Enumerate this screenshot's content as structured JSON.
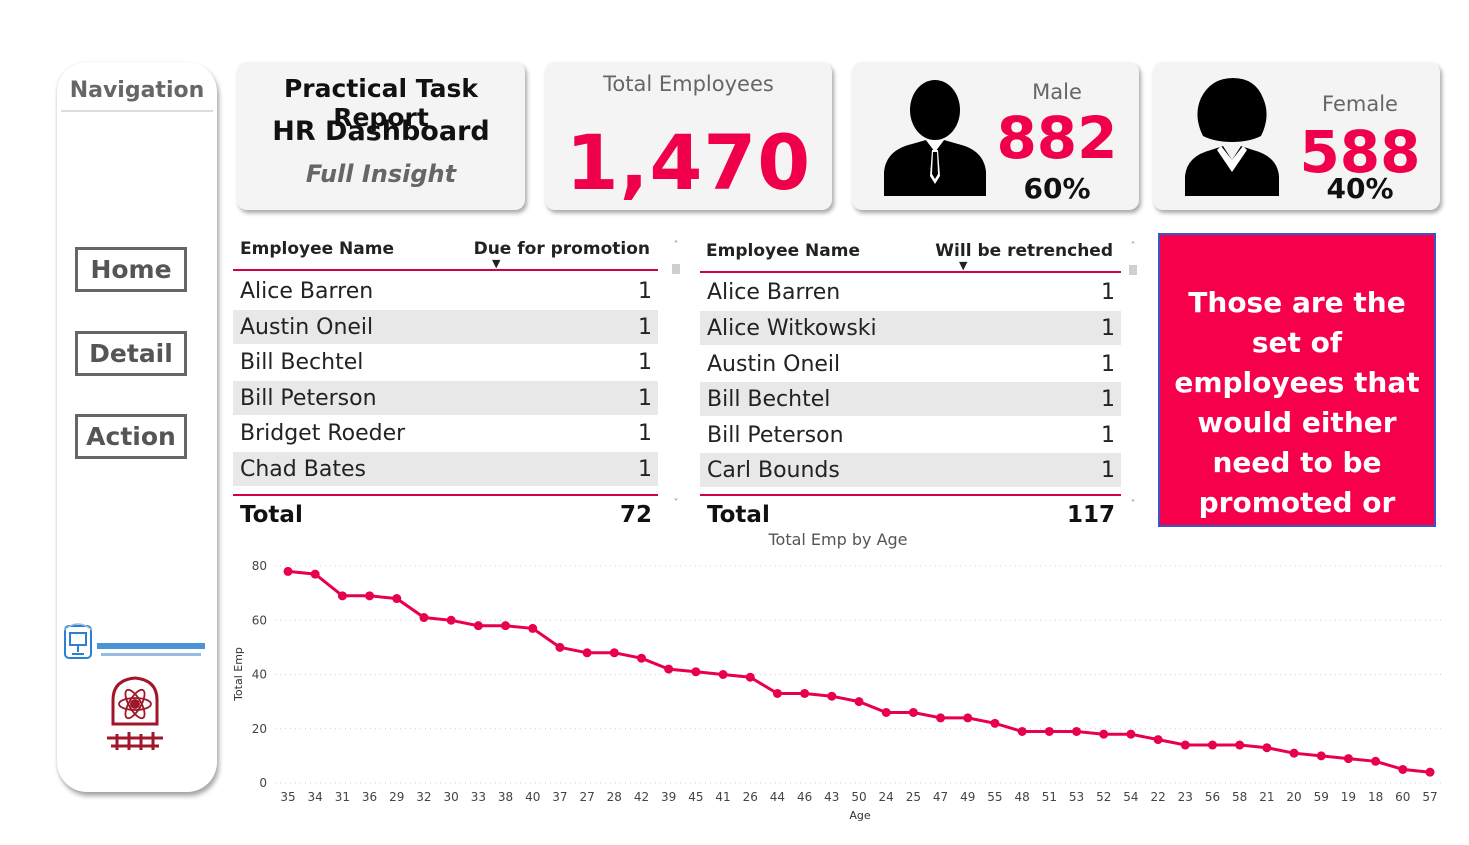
{
  "nav": {
    "title": "Navigation",
    "buttons": [
      "Home",
      "Detail",
      "Action"
    ]
  },
  "title_card": {
    "line1": "Practical Task Report",
    "line2": "HR Dashboard",
    "line3": "Full Insight"
  },
  "total": {
    "label": "Total Employees",
    "value": "1,470"
  },
  "male": {
    "label": "Male",
    "value": "882",
    "pct": "60%"
  },
  "female": {
    "label": "Female",
    "value": "588",
    "pct": "40%"
  },
  "promotion_table": {
    "col_name": "Employee Name",
    "col_value": "Due for promotion",
    "rows": [
      {
        "name": "Alice Barren",
        "value": "1"
      },
      {
        "name": "Austin Oneil",
        "value": "1"
      },
      {
        "name": "Bill Bechtel",
        "value": "1"
      },
      {
        "name": "Bill Peterson",
        "value": "1"
      },
      {
        "name": "Bridget Roeder",
        "value": "1"
      },
      {
        "name": "Chad Bates",
        "value": "1"
      }
    ],
    "total_label": "Total",
    "total_value": "72"
  },
  "retrench_table": {
    "col_name": "Employee Name",
    "col_value": "Will be retrenched",
    "rows": [
      {
        "name": "Alice Barren",
        "value": "1"
      },
      {
        "name": "Alice Witkowski",
        "value": "1"
      },
      {
        "name": "Austin Oneil",
        "value": "1"
      },
      {
        "name": "Bill Bechtel",
        "value": "1"
      },
      {
        "name": "Bill Peterson",
        "value": "1"
      },
      {
        "name": "Carl Bounds",
        "value": "1"
      }
    ],
    "total_label": "Total",
    "total_value": "117"
  },
  "callout": {
    "text": "Those are the set of employees that would either need to be promoted or retired"
  },
  "colors": {
    "accent": "#f0004a",
    "callout_bg": "#f6004c",
    "callout_border": "#3a55c8"
  },
  "chart_data": {
    "type": "line",
    "title": "Total Emp by Age",
    "xlabel": "Age",
    "ylabel": "Total Emp",
    "categories": [
      "35",
      "34",
      "31",
      "36",
      "29",
      "32",
      "30",
      "33",
      "38",
      "40",
      "37",
      "27",
      "28",
      "42",
      "39",
      "45",
      "41",
      "26",
      "44",
      "46",
      "43",
      "50",
      "24",
      "25",
      "47",
      "49",
      "55",
      "48",
      "51",
      "53",
      "52",
      "54",
      "22",
      "23",
      "56",
      "58",
      "21",
      "20",
      "59",
      "19",
      "18",
      "60",
      "57"
    ],
    "series": [
      {
        "values": [
          78,
          77,
          69,
          69,
          68,
          61,
          60,
          58,
          58,
          57,
          50,
          48,
          48,
          46,
          42,
          41,
          40,
          39,
          33,
          33,
          32,
          30,
          26,
          26,
          24,
          24,
          22,
          19,
          19,
          19,
          18,
          18,
          16,
          14,
          14,
          14,
          13,
          11,
          10,
          9,
          8,
          5,
          4
        ]
      }
    ],
    "ylim": [
      0,
      80
    ],
    "yticks": [
      0,
      20,
      40,
      60,
      80
    ],
    "grid": true,
    "line_color": "#e8004a"
  }
}
